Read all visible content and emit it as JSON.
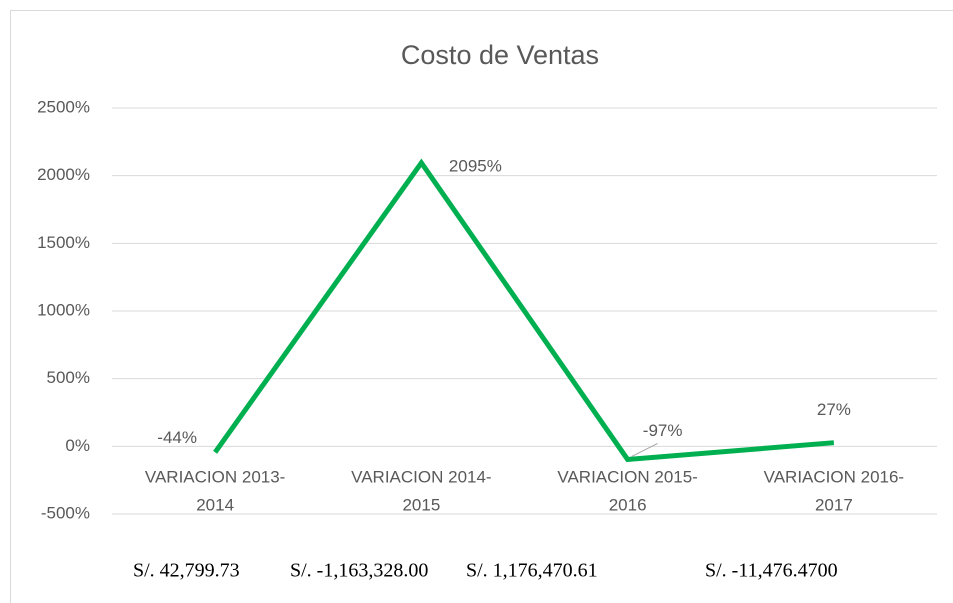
{
  "chart_data": {
    "type": "line",
    "title": "Costo de Ventas",
    "categories": [
      "VARIACION 2013-2014",
      "VARIACION 2014-2015",
      "VARIACION 2015-2016",
      "VARIACION 2016-2017"
    ],
    "series": [
      {
        "name": "Costo de Ventas",
        "color": "#00b050",
        "values": [
          -44,
          2095,
          -97,
          27
        ],
        "value_labels": [
          "-44%",
          "2095%",
          "-97%",
          "27%"
        ]
      }
    ],
    "ylim": [
      -500,
      2500
    ],
    "yticks": [
      {
        "value": -500,
        "label": "-500%"
      },
      {
        "value": 0,
        "label": "0%"
      },
      {
        "value": 500,
        "label": "500%"
      },
      {
        "value": 1000,
        "label": "1000%"
      },
      {
        "value": 1500,
        "label": "1500%"
      },
      {
        "value": 2000,
        "label": "2000%"
      },
      {
        "value": 2500,
        "label": "2500%"
      }
    ],
    "grid": true,
    "annotations": [
      "S/. 42,799.73",
      "S/. -1,163,328.00",
      "S/. 1,176,470.61",
      "S/. -11,476.4700"
    ]
  }
}
